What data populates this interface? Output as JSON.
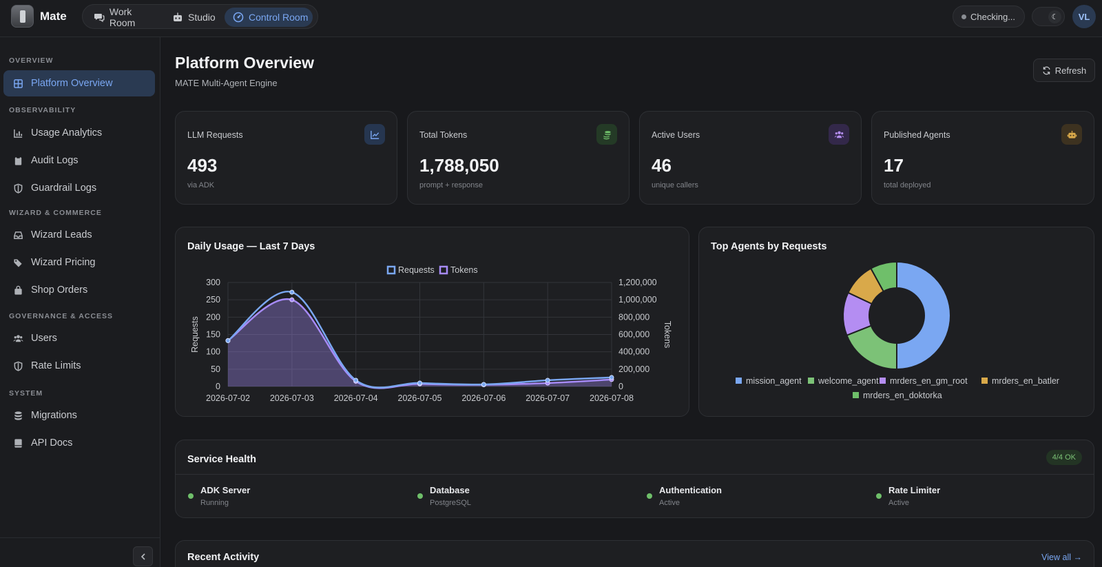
{
  "app": {
    "brand": "Mate"
  },
  "topnav": {
    "tabs": [
      {
        "label": "Work Room",
        "icon": "chat-icon"
      },
      {
        "label": "Studio",
        "icon": "robot-icon"
      },
      {
        "label": "Control Room",
        "icon": "gauge-icon",
        "active": true
      }
    ],
    "status": "Checking...",
    "avatar_initials": "VL"
  },
  "sidebar": {
    "sections": [
      {
        "title": "OVERVIEW",
        "items": [
          {
            "label": "Platform Overview",
            "active": true
          }
        ]
      },
      {
        "title": "OBSERVABILITY",
        "items": [
          {
            "label": "Usage Analytics"
          },
          {
            "label": "Audit Logs"
          },
          {
            "label": "Guardrail Logs"
          }
        ]
      },
      {
        "title": "WIZARD & COMMERCE",
        "items": [
          {
            "label": "Wizard Leads"
          },
          {
            "label": "Wizard Pricing"
          },
          {
            "label": "Shop Orders"
          }
        ]
      },
      {
        "title": "GOVERNANCE & ACCESS",
        "items": [
          {
            "label": "Users"
          },
          {
            "label": "Rate Limits"
          }
        ]
      },
      {
        "title": "SYSTEM",
        "items": [
          {
            "label": "Migrations"
          },
          {
            "label": "API Docs"
          }
        ]
      }
    ]
  },
  "page": {
    "title": "Platform Overview",
    "subtitle": "MATE Multi-Agent Engine",
    "refresh_label": "Refresh"
  },
  "stats": [
    {
      "label": "LLM Requests",
      "value": "493",
      "sub": "via ADK",
      "icon": "chart-line-icon",
      "color": "#7aa7f2"
    },
    {
      "label": "Total Tokens",
      "value": "1,788,050",
      "sub": "prompt + response",
      "icon": "coins-icon",
      "color": "#6fbf6a"
    },
    {
      "label": "Active Users",
      "value": "46",
      "sub": "unique callers",
      "icon": "users-icon",
      "color": "#b48df2"
    },
    {
      "label": "Published Agents",
      "value": "17",
      "sub": "total deployed",
      "icon": "robot-icon",
      "color": "#d9a94a"
    }
  ],
  "daily_chart": {
    "title": "Daily Usage — Last 7 Days"
  },
  "agents_chart": {
    "title": "Top Agents by Requests"
  },
  "chart_data": [
    {
      "type": "line",
      "title": "Daily Usage — Last 7 Days",
      "categories": [
        "2026-07-02",
        "2026-07-03",
        "2026-07-04",
        "2026-07-05",
        "2026-07-06",
        "2026-07-07",
        "2026-07-08"
      ],
      "series": [
        {
          "name": "Requests",
          "axis": "left",
          "values": [
            132,
            272,
            18,
            10,
            6,
            18,
            26
          ],
          "color": "#7aa7f2"
        },
        {
          "name": "Tokens",
          "axis": "right",
          "values": [
            530000,
            1000000,
            60000,
            30000,
            20000,
            40000,
            80000
          ],
          "color": "#a78bfa"
        }
      ],
      "ylabel": "Requests",
      "y2label": "Tokens",
      "ylim": [
        0,
        300
      ],
      "y2lim": [
        0,
        1200000
      ],
      "yticks": [
        "0",
        "50",
        "100",
        "150",
        "200",
        "250",
        "300"
      ],
      "y2ticks": [
        "0",
        "200,000",
        "400,000",
        "600,000",
        "800,000",
        "1,000,000",
        "1,200,000"
      ],
      "grid": true,
      "legend": "top-center"
    },
    {
      "type": "pie",
      "title": "Top Agents by Requests",
      "donut": true,
      "labels": [
        "mission_agent",
        "welcome_agent",
        "mrders_en_gm_root",
        "mrders_en_batler",
        "mrders_en_doktorka"
      ],
      "values": [
        50,
        19,
        13,
        10,
        8
      ],
      "colors": [
        "#7aa7f2",
        "#7cc277",
        "#b48df2",
        "#d9a94a",
        "#6fbf6a"
      ],
      "legend": "bottom"
    }
  ],
  "health": {
    "title": "Service Health",
    "summary": "4/4 OK",
    "services": [
      {
        "name": "ADK Server",
        "status": "Running"
      },
      {
        "name": "Database",
        "status": "PostgreSQL"
      },
      {
        "name": "Authentication",
        "status": "Active"
      },
      {
        "name": "Rate Limiter",
        "status": "Active"
      }
    ]
  },
  "activity": {
    "title": "Recent Activity",
    "view_all": "View all →"
  }
}
